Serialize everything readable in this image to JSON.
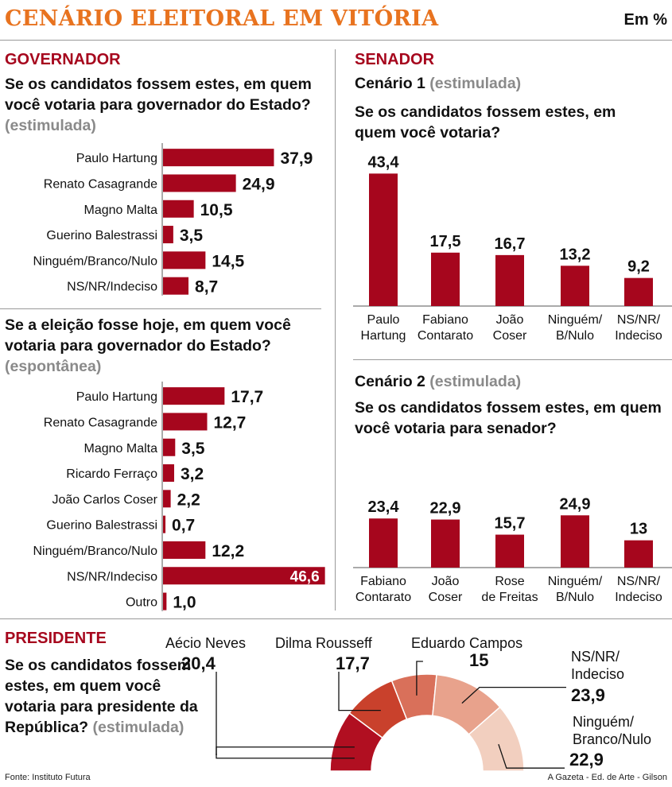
{
  "header": {
    "title": "CENÁRIO ELEITORAL EM VITÓRIA",
    "unit": "Em %"
  },
  "governador": {
    "heading": "GOVERNADOR",
    "q1": {
      "text": "Se os candidatos fossem estes, em quem você votaria para governador do Estado?",
      "tag": "(estimulada)"
    },
    "q2": {
      "text": "Se a eleição fosse hoje, em quem você votaria para governador do Estado?",
      "tag": "(espontânea)"
    }
  },
  "senador": {
    "heading": "SENADOR",
    "c1": {
      "title": "Cenário 1",
      "tag": "(estimulada)",
      "question": "Se os candidatos fossem estes, em quem você votaria?"
    },
    "c2": {
      "title": "Cenário 2",
      "tag": "(estimulada)",
      "question": "Se os candidatos fossem estes, em quem você votaria para senador?"
    }
  },
  "presidente": {
    "heading": "PRESIDENTE",
    "question": "Se os candidatos fossem estes, em quem você votaria para presidente da República?",
    "tag": "(estimulada)"
  },
  "footer": {
    "source": "Fonte: Instituto Futura",
    "credit": "A Gazeta - Ed. de Arte - Gilson"
  },
  "colors": {
    "bar": "#a6061d",
    "title": "#e8731f",
    "gray": "#8a8a8a"
  },
  "chart_data": [
    {
      "id": "gov1",
      "type": "bar",
      "orientation": "horizontal",
      "categories": [
        "Paulo Hartung",
        "Renato Casagrande",
        "Magno Malta",
        "Guerino Balestrassi",
        "Ninguém/Branco/Nulo",
        "NS/NR/Indeciso"
      ],
      "values": [
        37.9,
        24.9,
        10.5,
        3.5,
        14.5,
        8.7
      ],
      "labels": [
        "37,9",
        "24,9",
        "10,5",
        "3,5",
        "14,5",
        "8,7"
      ]
    },
    {
      "id": "gov2",
      "type": "bar",
      "orientation": "horizontal",
      "categories": [
        "Paulo Hartung",
        "Renato Casagrande",
        "Magno Malta",
        "Ricardo Ferraço",
        "João Carlos Coser",
        "Guerino Balestrassi",
        "Ninguém/Branco/Nulo",
        "NS/NR/Indeciso",
        "Outro"
      ],
      "values": [
        17.7,
        12.7,
        3.5,
        3.2,
        2.2,
        0.7,
        12.2,
        46.6,
        1.0
      ],
      "labels": [
        "17,7",
        "12,7",
        "3,5",
        "3,2",
        "2,2",
        "0,7",
        "12,2",
        "46,6",
        "1,0"
      ]
    },
    {
      "id": "sen1",
      "type": "bar",
      "orientation": "vertical",
      "categories": [
        "Paulo Hartung",
        "Fabiano Contarato",
        "João Coser",
        "Ninguém/ B/Nulo",
        "NS/NR/ Indeciso"
      ],
      "values": [
        43.4,
        17.5,
        16.7,
        13.2,
        9.2
      ],
      "labels": [
        "43,4",
        "17,5",
        "16,7",
        "13,2",
        "9,2"
      ]
    },
    {
      "id": "sen2",
      "type": "bar",
      "orientation": "vertical",
      "categories": [
        "Fabiano Contarato",
        "João Coser",
        "Rose de Freitas",
        "Ninguém/ B/Nulo",
        "NS/NR/ Indeciso"
      ],
      "values": [
        23.4,
        22.9,
        15.7,
        24.9,
        13
      ],
      "labels": [
        "23,4",
        "22,9",
        "15,7",
        "24,9",
        "13"
      ]
    },
    {
      "id": "pres",
      "type": "pie",
      "variant": "semicircle",
      "categories": [
        "Aécio Neves",
        "Dilma Rousseff",
        "Eduardo Campos",
        "NS/NR/ Indeciso",
        "Ninguém/ Branco/Nulo"
      ],
      "values": [
        20.4,
        17.7,
        15,
        23.9,
        22.9
      ],
      "labels": [
        "20,4",
        "17,7",
        "15",
        "23,9",
        "22,9"
      ],
      "colors": [
        "#b10f21",
        "#c9412c",
        "#d9705a",
        "#e8a28c",
        "#f2cfbf"
      ]
    }
  ]
}
